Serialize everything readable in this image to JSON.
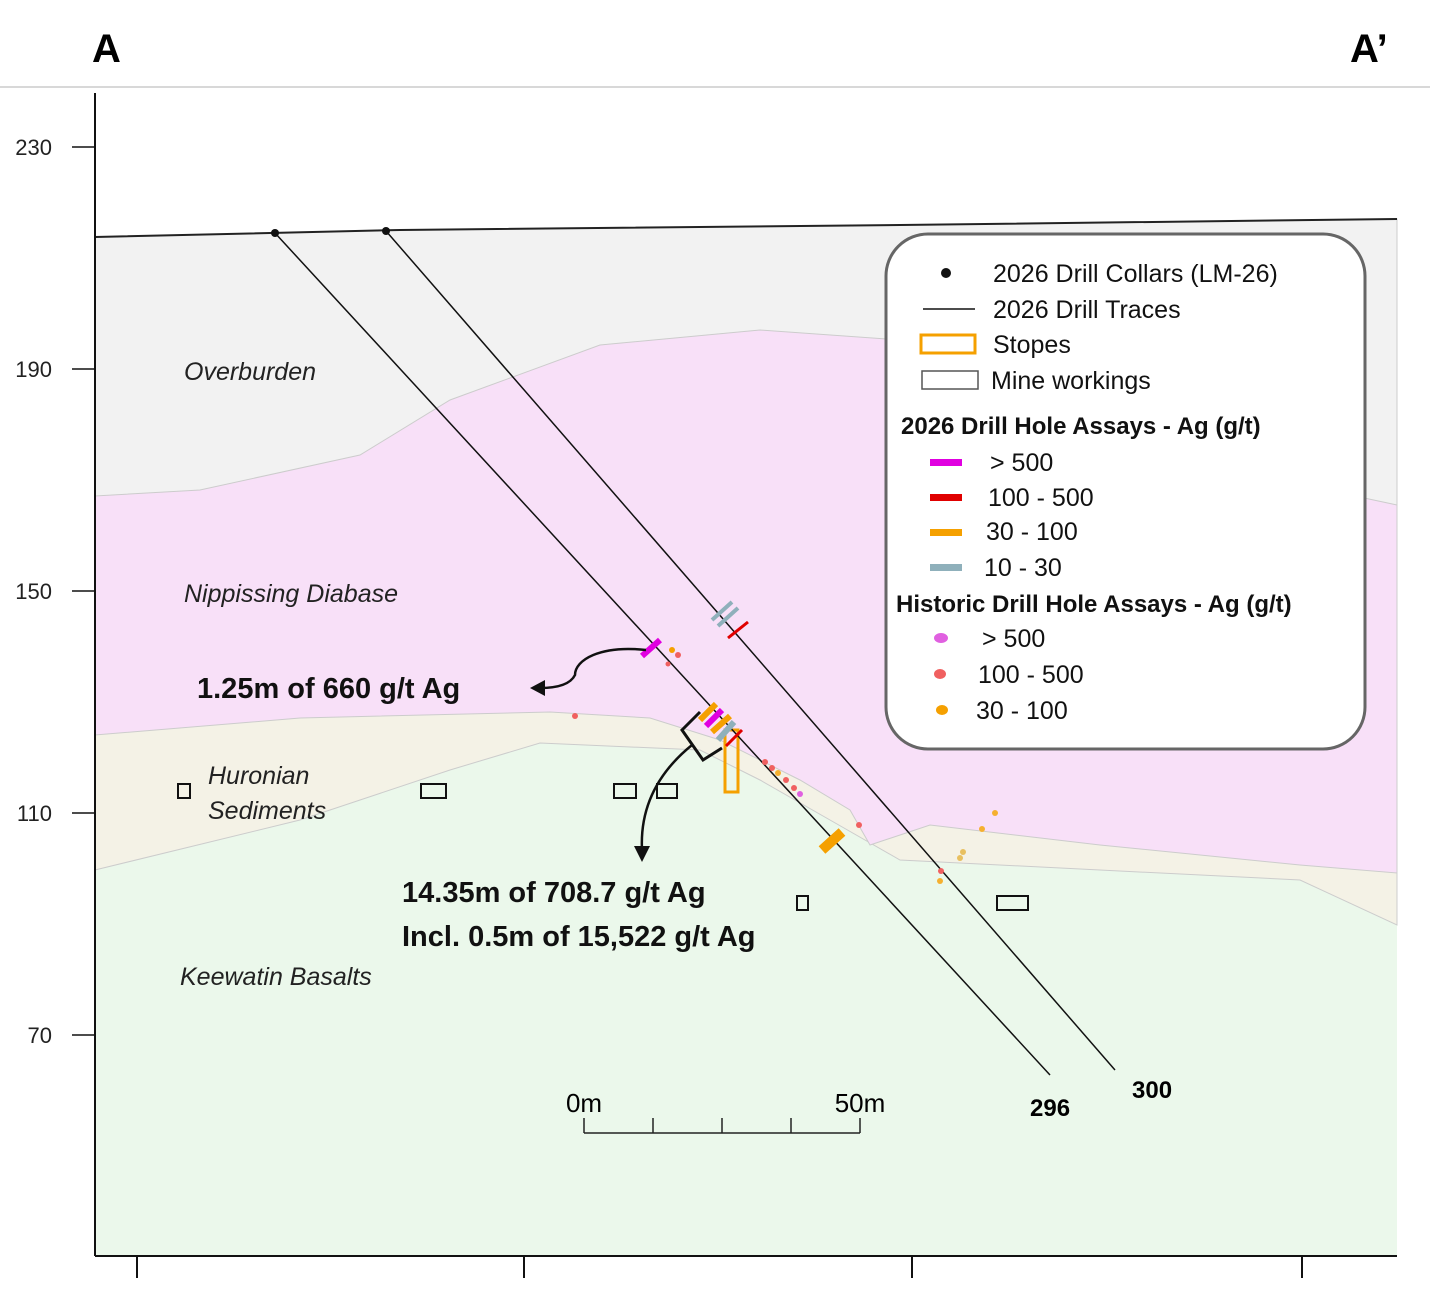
{
  "header": {
    "left": "A",
    "right": "A’"
  },
  "axis": {
    "yticks": [
      230,
      190,
      150,
      110,
      70
    ]
  },
  "units": {
    "overburden": "Overburden",
    "diabase": "Nippissing Diabase",
    "huronian": [
      "Huronian",
      "Sediments"
    ],
    "keewatin": "Keewatin Basalts"
  },
  "holes": {
    "h296": "296",
    "h300": "300"
  },
  "annotations": {
    "upper": "1.25m of 660 g/t Ag",
    "lower": [
      "14.35m of 708.7 g/t Ag",
      "Incl. 0.5m of 15,522 g/t Ag"
    ]
  },
  "scale_bar": {
    "start": "0m",
    "end": "50m"
  },
  "legend": {
    "items": [
      "2026 Drill Collars (LM-26)",
      "2026 Drill Traces",
      "Stopes",
      "Mine workings"
    ],
    "assays_2026": {
      "title": "2026 Drill Hole Assays - Ag (g/t)",
      "classes": [
        "> 500",
        "100 - 500",
        "30 - 100",
        "10 - 30"
      ]
    },
    "assays_historic": {
      "title": "Historic Drill Hole Assays - Ag (g/t)",
      "classes": [
        "> 500",
        "100 - 500",
        "30 - 100"
      ]
    }
  }
}
